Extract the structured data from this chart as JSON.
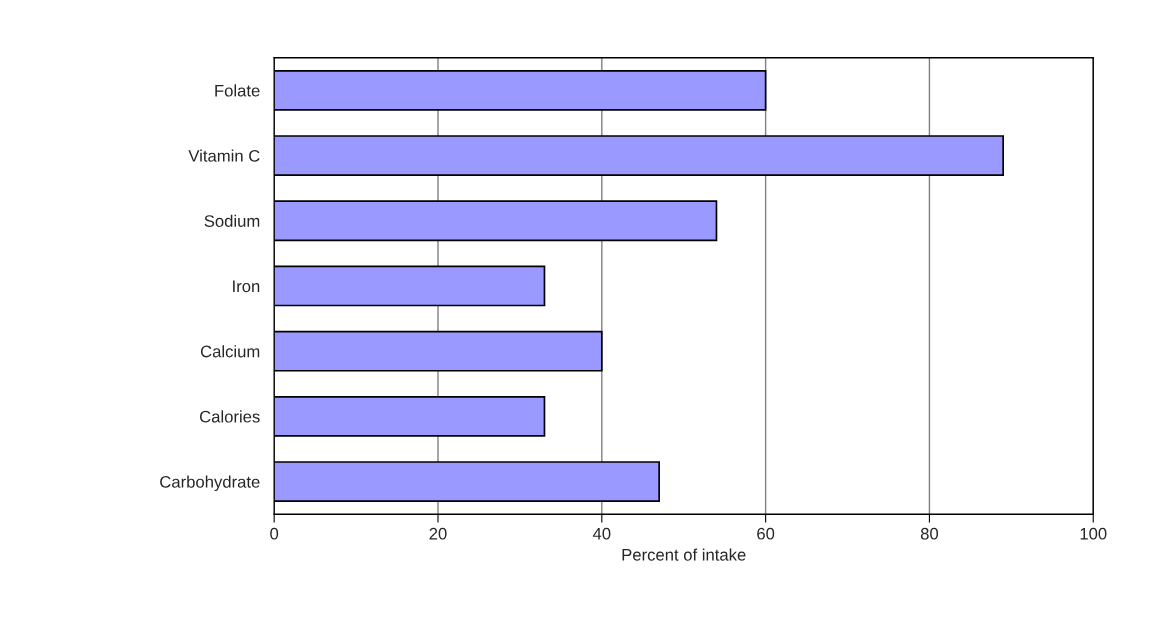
{
  "chart_data": {
    "type": "bar",
    "orientation": "horizontal",
    "categories": [
      "Folate",
      "Vitamin C",
      "Sodium",
      "Iron",
      "Calcium",
      "Calories",
      "Carbohydrate"
    ],
    "values": [
      60,
      89,
      54,
      33,
      40,
      33,
      47
    ],
    "color": "#9999ff",
    "xlabel": "Percent of intake",
    "xlim": [
      0,
      100
    ],
    "xticks": [
      0,
      20,
      40,
      60,
      80,
      100
    ],
    "grid": "x"
  }
}
